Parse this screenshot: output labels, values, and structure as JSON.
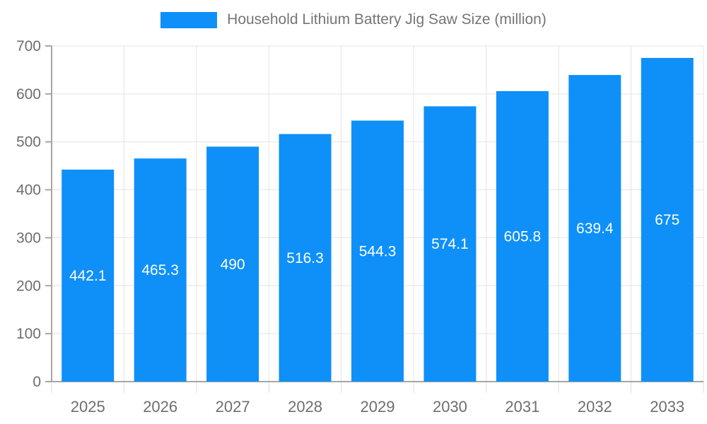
{
  "chart_data": {
    "type": "bar",
    "title": "Household Lithium Battery Jig Saw Size (million)",
    "legend": [
      "Household Lithium Battery Jig Saw Size (million)"
    ],
    "legend_position": "top",
    "categories": [
      "2025",
      "2026",
      "2027",
      "2028",
      "2029",
      "2030",
      "2031",
      "2032",
      "2033"
    ],
    "values": [
      442.1,
      465.3,
      490,
      516.3,
      544.3,
      574.1,
      605.8,
      639.4,
      675
    ],
    "value_labels": [
      "442.1",
      "465.3",
      "490",
      "516.3",
      "544.3",
      "574.1",
      "605.8",
      "639.4",
      "675"
    ],
    "xlabel": "",
    "ylabel": "",
    "ylim": [
      0,
      700
    ],
    "ytick_step": 100,
    "yticks": [
      "0",
      "100",
      "200",
      "300",
      "400",
      "500",
      "600",
      "700"
    ],
    "grid": true,
    "colors": {
      "bar": "#0e90f8",
      "value_label": "#ffffff",
      "axis_line": "#a6a6a6",
      "grid_line": "#e4e4e4",
      "x_tick_line": "#dddddd",
      "tick_text": "#6e6e6e",
      "legend_text": "#757575"
    }
  }
}
